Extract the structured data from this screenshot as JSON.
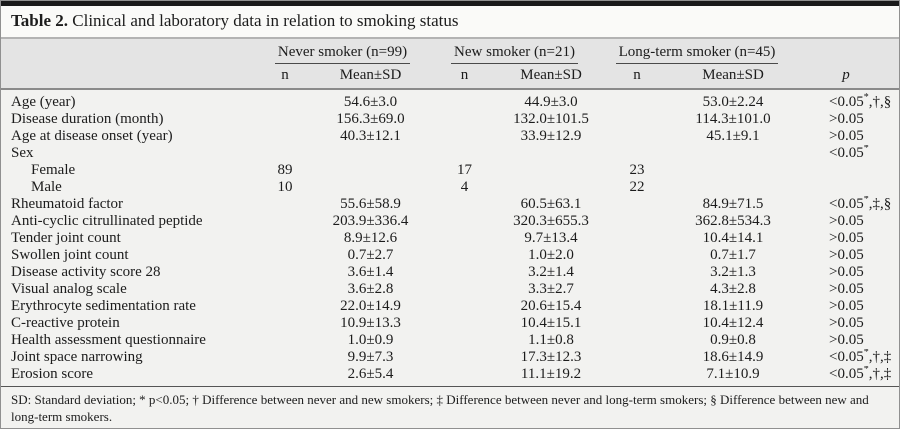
{
  "title": {
    "label": "Table 2.",
    "text": "Clinical and laboratory data in relation to smoking status"
  },
  "table": {
    "groups": [
      {
        "label": "Never smoker (n=99)"
      },
      {
        "label": "New smoker (n=21)"
      },
      {
        "label": "Long-term smoker (n=45)"
      }
    ],
    "subheaders": {
      "n": "n",
      "mean": "Mean±SD",
      "p": "p"
    },
    "rows": [
      {
        "label": "Age (year)",
        "indent": false,
        "n": [
          "",
          "",
          ""
        ],
        "mean": [
          "54.6±3.0",
          "44.9±3.0",
          "53.0±2.24"
        ],
        "p": "<0.05*,†,§"
      },
      {
        "label": "Disease duration (month)",
        "indent": false,
        "n": [
          "",
          "",
          ""
        ],
        "mean": [
          "156.3±69.0",
          "132.0±101.5",
          "114.3±101.0"
        ],
        "p": ">0.05"
      },
      {
        "label": "Age at disease onset (year)",
        "indent": false,
        "n": [
          "",
          "",
          ""
        ],
        "mean": [
          "40.3±12.1",
          "33.9±12.9",
          "45.1±9.1"
        ],
        "p": ">0.05"
      },
      {
        "label": "Sex",
        "indent": false,
        "n": [
          "",
          "",
          ""
        ],
        "mean": [
          "",
          "",
          ""
        ],
        "p": "<0.05*"
      },
      {
        "label": "Female",
        "indent": true,
        "n": [
          "89",
          "17",
          "23"
        ],
        "mean": [
          "",
          "",
          ""
        ],
        "p": ""
      },
      {
        "label": "Male",
        "indent": true,
        "n": [
          "10",
          "4",
          "22"
        ],
        "mean": [
          "",
          "",
          ""
        ],
        "p": ""
      },
      {
        "label": "Rheumatoid factor",
        "indent": false,
        "n": [
          "",
          "",
          ""
        ],
        "mean": [
          "55.6±58.9",
          "60.5±63.1",
          "84.9±71.5"
        ],
        "p": "<0.05*,‡,§"
      },
      {
        "label": "Anti-cyclic citrullinated peptide",
        "indent": false,
        "n": [
          "",
          "",
          ""
        ],
        "mean": [
          "203.9±336.4",
          "320.3±655.3",
          "362.8±534.3"
        ],
        "p": ">0.05"
      },
      {
        "label": "Tender joint count",
        "indent": false,
        "n": [
          "",
          "",
          ""
        ],
        "mean": [
          "8.9±12.6",
          "9.7±13.4",
          "10.4±14.1"
        ],
        "p": ">0.05"
      },
      {
        "label": "Swollen joint count",
        "indent": false,
        "n": [
          "",
          "",
          ""
        ],
        "mean": [
          "0.7±2.7",
          "1.0±2.0",
          "0.7±1.7"
        ],
        "p": ">0.05"
      },
      {
        "label": "Disease activity score 28",
        "indent": false,
        "n": [
          "",
          "",
          ""
        ],
        "mean": [
          "3.6±1.4",
          "3.2±1.4",
          "3.2±1.3"
        ],
        "p": ">0.05"
      },
      {
        "label": "Visual analog scale",
        "indent": false,
        "n": [
          "",
          "",
          ""
        ],
        "mean": [
          "3.6±2.8",
          "3.3±2.7",
          "4.3±2.8"
        ],
        "p": ">0.05"
      },
      {
        "label": "Erythrocyte sedimentation rate",
        "indent": false,
        "n": [
          "",
          "",
          ""
        ],
        "mean": [
          "22.0±14.9",
          "20.6±15.4",
          "18.1±11.9"
        ],
        "p": ">0.05"
      },
      {
        "label": "C-reactive protein",
        "indent": false,
        "n": [
          "",
          "",
          ""
        ],
        "mean": [
          "10.9±13.3",
          "10.4±15.1",
          "10.4±12.4"
        ],
        "p": ">0.05"
      },
      {
        "label": "Health assessment questionnaire",
        "indent": false,
        "n": [
          "",
          "",
          ""
        ],
        "mean": [
          "1.0±0.9",
          "1.1±0.8",
          "0.9±0.8"
        ],
        "p": ">0.05"
      },
      {
        "label": "Joint space narrowing",
        "indent": false,
        "n": [
          "",
          "",
          ""
        ],
        "mean": [
          "9.9±7.3",
          "17.3±12.3",
          "18.6±14.9"
        ],
        "p": "<0.05*,†,‡"
      },
      {
        "label": "Erosion score",
        "indent": false,
        "n": [
          "",
          "",
          ""
        ],
        "mean": [
          "2.6±5.4",
          "11.1±19.2",
          "7.1±10.9"
        ],
        "p": "<0.05*,†,‡"
      }
    ]
  },
  "footnote": "SD: Standard deviation; * p<0.05; † Difference between never and new smokers; ‡ Difference between never and long-term smokers; § Difference between new and long-term smokers.",
  "colors": {
    "top_rule": "#1a1a1a",
    "header_band_bg": "#e4e4e4",
    "body_bg": "#f2f2f0",
    "title_bg": "#fafaf8",
    "text": "#1c1c1c",
    "outer_border": "#909090"
  }
}
